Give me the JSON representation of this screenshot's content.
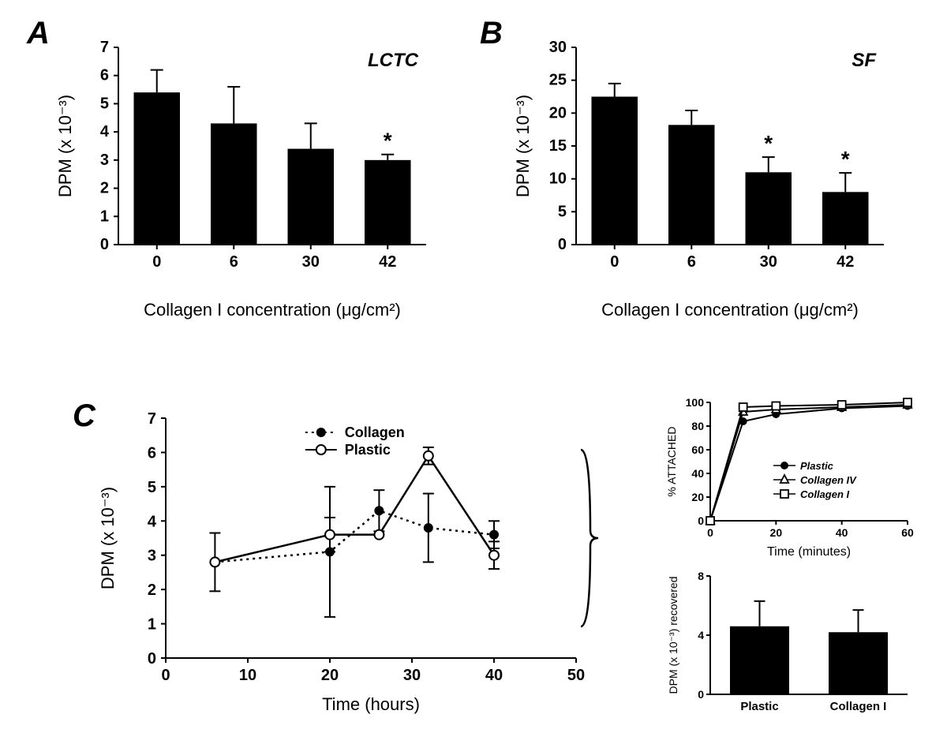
{
  "panelA": {
    "label": "A",
    "type": "bar",
    "subtitle": "LCTC",
    "categories": [
      "0",
      "6",
      "30",
      "42"
    ],
    "values": [
      5.4,
      4.3,
      3.4,
      3.0
    ],
    "errors": [
      0.8,
      1.3,
      0.9,
      0.2
    ],
    "signif": [
      "",
      "",
      "",
      "*"
    ],
    "bar_color": "#000000",
    "ylim": [
      0,
      7
    ],
    "ytick_step": 1,
    "bar_width": 0.6,
    "ylabel": "DPM (x 10⁻³)",
    "xlabel": "Collagen I concentration (μg/cm²)",
    "title_fontsize": 16,
    "label_fontsize": 18
  },
  "panelB": {
    "label": "B",
    "type": "bar",
    "subtitle": "SF",
    "categories": [
      "0",
      "6",
      "30",
      "42"
    ],
    "values": [
      22.5,
      18.2,
      11.0,
      8.0
    ],
    "errors": [
      2.0,
      2.2,
      2.3,
      2.9
    ],
    "signif": [
      "",
      "",
      "*",
      "*"
    ],
    "bar_color": "#000000",
    "ylim": [
      0,
      30
    ],
    "ytick_step": 5,
    "bar_width": 0.6,
    "ylabel": "DPM (x 10⁻³)",
    "xlabel": "Collagen I concentration (μg/cm²)",
    "title_fontsize": 16,
    "label_fontsize": 18
  },
  "panelC": {
    "label": "C",
    "type": "line",
    "series": [
      {
        "name": "Collagen",
        "marker": "filled-circle",
        "dash": "dotted",
        "color": "#000000",
        "x": [
          6,
          20,
          26,
          32,
          40
        ],
        "y": [
          2.8,
          3.1,
          4.3,
          3.8,
          3.6
        ],
        "err": [
          0.85,
          1.9,
          0.6,
          1.0,
          0.4
        ]
      },
      {
        "name": "Plastic",
        "marker": "open-circle",
        "dash": "solid",
        "color": "#000000",
        "x": [
          6,
          20,
          26,
          32,
          40
        ],
        "y": [
          2.8,
          3.6,
          3.6,
          5.9,
          3.0
        ],
        "err": [
          0.0,
          0.5,
          0.0,
          0.25,
          0.4
        ]
      }
    ],
    "ylim": [
      0,
      7
    ],
    "ytick_step": 1,
    "xlim": [
      0,
      50
    ],
    "xtick_step": 10,
    "ylabel": "DPM (x 10⁻³)",
    "xlabel": "Time (hours)",
    "legend_pos": "top-center"
  },
  "panelC_inset_line": {
    "type": "line",
    "series": [
      {
        "name": "Plastic",
        "marker": "filled-circle",
        "color": "#000000",
        "x": [
          0,
          10,
          20,
          40,
          60
        ],
        "y": [
          0,
          84,
          90,
          95,
          97
        ]
      },
      {
        "name": "Collagen IV",
        "marker": "open-triangle",
        "color": "#000000",
        "x": [
          0,
          10,
          20,
          40,
          60
        ],
        "y": [
          0,
          92,
          94,
          96,
          98
        ]
      },
      {
        "name": "Collagen I",
        "marker": "open-square",
        "color": "#000000",
        "x": [
          0,
          10,
          20,
          40,
          60
        ],
        "y": [
          0,
          96,
          97,
          98,
          100
        ]
      }
    ],
    "ylim": [
      0,
      100
    ],
    "yticks": [
      0,
      20,
      40,
      60,
      80,
      100
    ],
    "xlim": [
      0,
      60
    ],
    "xticks": [
      0,
      20,
      40,
      60
    ],
    "ylabel": "% ATTACHED",
    "xlabel": "Time (minutes)"
  },
  "panelC_inset_bar": {
    "type": "bar",
    "categories": [
      "Plastic",
      "Collagen I"
    ],
    "values": [
      4.6,
      4.2
    ],
    "errors": [
      1.7,
      1.5
    ],
    "bar_color": "#000000",
    "ylim": [
      0,
      8
    ],
    "yticks": [
      0,
      4,
      8
    ],
    "bar_width": 0.6,
    "ylabel": "DPM (x 10⁻³) recovered"
  },
  "background_color": "#ffffff",
  "text_color": "#000000"
}
